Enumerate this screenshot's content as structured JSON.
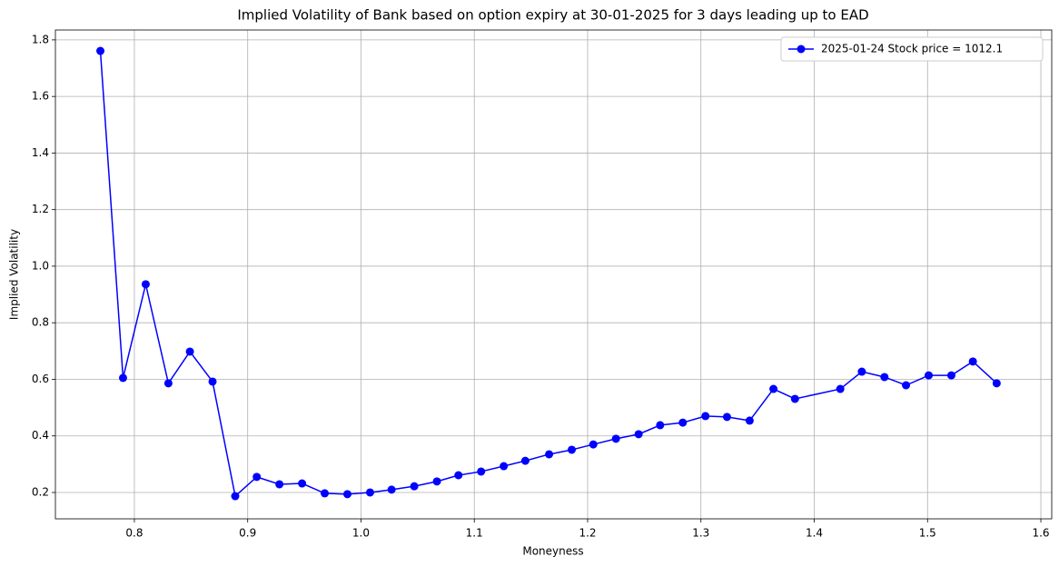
{
  "chart_data": {
    "type": "line",
    "title": "Implied Volatility of Bank based on option expiry at 30-01-2025 for 3 days leading up to EAD",
    "x_label": "Moneyness",
    "y_label": "Implied Volatility",
    "x": [
      0.77,
      0.79,
      0.81,
      0.83,
      0.849,
      0.869,
      0.889,
      0.908,
      0.928,
      0.948,
      0.968,
      0.988,
      1.008,
      1.027,
      1.047,
      1.067,
      1.086,
      1.106,
      1.126,
      1.145,
      1.166,
      1.186,
      1.205,
      1.225,
      1.245,
      1.264,
      1.284,
      1.304,
      1.323,
      1.343,
      1.364,
      1.383,
      1.423,
      1.442,
      1.462,
      1.481,
      1.501,
      1.521,
      1.54,
      1.561
    ],
    "series": [
      {
        "name": "2025-01-24 Stock price = 1012.1",
        "color": "#0000ff",
        "values": [
          1.761,
          0.605,
          0.936,
          0.586,
          0.698,
          0.592,
          0.187,
          0.255,
          0.229,
          0.232,
          0.197,
          0.194,
          0.2,
          0.21,
          0.222,
          0.239,
          0.261,
          0.274,
          0.293,
          0.312,
          0.335,
          0.351,
          0.37,
          0.39,
          0.406,
          0.438,
          0.447,
          0.47,
          0.467,
          0.454,
          0.566,
          0.531,
          0.566,
          0.627,
          0.608,
          0.579,
          0.614,
          0.614,
          0.663,
          0.586
        ]
      }
    ],
    "xlim": [
      0.7303,
      1.6096
    ],
    "ylim": [
      0.1068,
      1.835
    ],
    "xticks": [
      0.8,
      0.9,
      {
        "value": 1,
        "label": "1.0"
      },
      1.1,
      1.2,
      1.3,
      1.4,
      1.5,
      1.6
    ],
    "yticks": [
      0.2,
      0.4,
      0.6,
      0.8,
      {
        "value": 1,
        "label": "1.0"
      },
      1.2,
      1.4,
      1.6,
      1.8
    ],
    "grid": true,
    "legend": "upper right",
    "markers": true
  }
}
